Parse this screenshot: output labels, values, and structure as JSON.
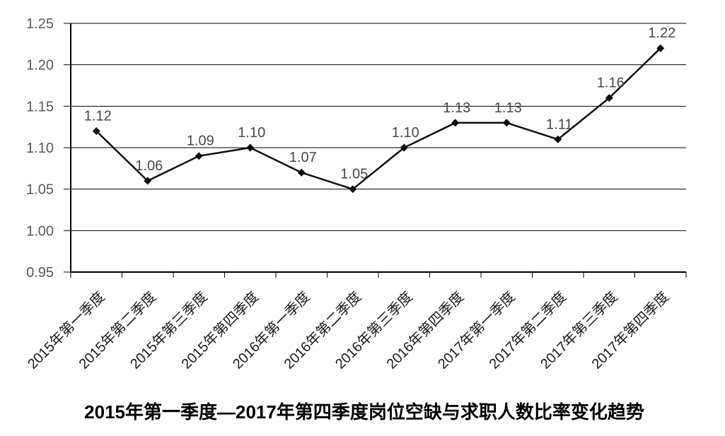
{
  "chart_data": {
    "type": "line",
    "title": "2015年第一季度—2017年第四季度岗位空缺与求职人数比率变化趋势",
    "categories": [
      "2015年第一季度",
      "2015年第二季度",
      "2015年第三季度",
      "2015年第四季度",
      "2016年第一季度",
      "2016年第二季度",
      "2016年第三季度",
      "2016年第四季度",
      "2017年第一季度",
      "2017年第二季度",
      "2017年第三季度",
      "2017年第四季度"
    ],
    "series": [
      {
        "name": "岗位空缺与求职人数比率",
        "values": [
          1.12,
          1.06,
          1.09,
          1.1,
          1.07,
          1.05,
          1.1,
          1.13,
          1.13,
          1.11,
          1.16,
          1.22
        ],
        "point_labels": [
          "1.12",
          "1.06",
          "1.09",
          "1.10",
          "1.07",
          "1.05",
          "1.10",
          "1.13",
          "1.13",
          "1.11",
          "1.16",
          "1.22"
        ]
      }
    ],
    "xlabel": "",
    "ylabel": "",
    "ylim": [
      0.95,
      1.25
    ],
    "y_ticks": [
      {
        "value": 0.95,
        "label": "0.95"
      },
      {
        "value": 1.0,
        "label": "1.00"
      },
      {
        "value": 1.05,
        "label": "1.05"
      },
      {
        "value": 1.1,
        "label": "1.10"
      },
      {
        "value": 1.15,
        "label": "1.15"
      },
      {
        "value": 1.2,
        "label": "1.20"
      },
      {
        "value": 1.25,
        "label": "1.25"
      }
    ],
    "grid": "horizontal",
    "legend": "none",
    "colors": {
      "line": "#111111",
      "marker": "#0d0d0d",
      "gridline": "#000000",
      "axis": "#000000",
      "y_tick_text": "#595959",
      "x_tick_text": "#1a1a1a",
      "point_label_text": "#474747",
      "title_text": "#000000",
      "background": "#ffffff"
    },
    "marker_shape": "diamond"
  }
}
